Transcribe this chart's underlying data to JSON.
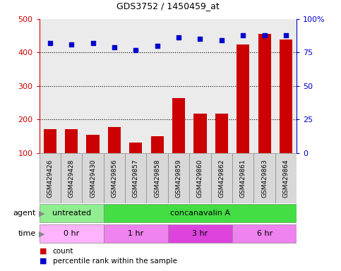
{
  "title": "GDS3752 / 1450459_at",
  "samples": [
    "GSM429426",
    "GSM429428",
    "GSM429430",
    "GSM429856",
    "GSM429857",
    "GSM429858",
    "GSM429859",
    "GSM429860",
    "GSM429862",
    "GSM429861",
    "GSM429863",
    "GSM429864"
  ],
  "counts": [
    172,
    172,
    155,
    178,
    132,
    150,
    265,
    218,
    218,
    425,
    455,
    438
  ],
  "percentile_ranks": [
    82,
    81,
    82,
    79,
    77,
    80,
    86,
    85,
    84,
    88,
    88,
    88
  ],
  "ylim_left": [
    100,
    500
  ],
  "ylim_right": [
    0,
    100
  ],
  "yticks_left": [
    100,
    200,
    300,
    400,
    500
  ],
  "yticks_right": [
    0,
    25,
    50,
    75,
    100
  ],
  "agent_groups": [
    {
      "label": "untreated",
      "start": 0,
      "end": 3,
      "color": "#90EE90"
    },
    {
      "label": "concanavalin A",
      "start": 3,
      "end": 12,
      "color": "#44DD44"
    }
  ],
  "time_groups": [
    {
      "label": "0 hr",
      "start": 0,
      "end": 3,
      "color": "#FFB3FF"
    },
    {
      "label": "1 hr",
      "start": 3,
      "end": 6,
      "color": "#EE82EE"
    },
    {
      "label": "3 hr",
      "start": 6,
      "end": 9,
      "color": "#DD44DD"
    },
    {
      "label": "6 hr",
      "start": 9,
      "end": 12,
      "color": "#EE82EE"
    }
  ],
  "bar_color": "#CC0000",
  "dot_color": "#0000CC",
  "sample_box_color": "#D8D8D8",
  "left_axis_color": "#CC0000",
  "right_axis_color": "#0000CC",
  "legend_count_color": "#CC0000",
  "legend_pct_color": "#0000CC",
  "fig_width": 4.83,
  "fig_height": 3.84,
  "dpi": 100
}
